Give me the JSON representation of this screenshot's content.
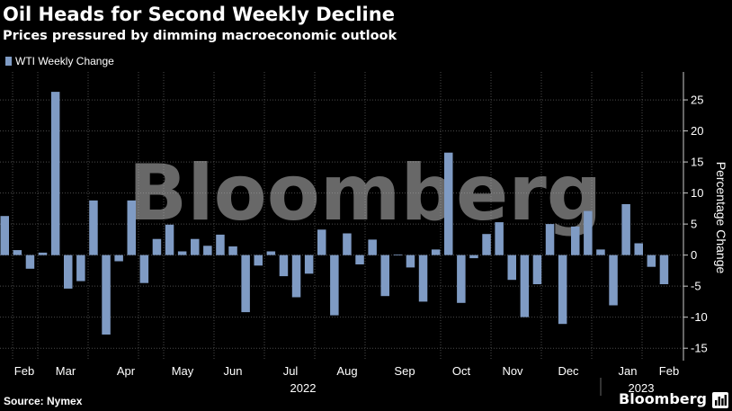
{
  "header": {
    "title": "Oil Heads for Second Weekly Decline",
    "subtitle": "Prices pressured by dimming macroeconomic outlook"
  },
  "footer": {
    "source": "Source: Nymex",
    "brand": "Bloomberg"
  },
  "watermark": "Bloomberg",
  "colors": {
    "background": "#000000",
    "bar": "#7f9bc4",
    "grid": "#4a4a4a",
    "text": "#ffffff"
  },
  "chart_data": {
    "type": "bar",
    "title": "Oil Heads for Second Weekly Decline",
    "subtitle": "Prices pressured by dimming macroeconomic outlook",
    "ylabel": "Percentage Change",
    "ylim": [
      -17,
      29.5
    ],
    "yticks": [
      -15,
      -10,
      -5,
      0,
      5,
      10,
      15,
      20,
      25
    ],
    "grid": true,
    "legend_position": "top-left",
    "x_tick_labels": [
      "Feb",
      "Mar",
      "Apr",
      "May",
      "Jun",
      "Jul",
      "Aug",
      "Sep",
      "Oct",
      "Nov",
      "Dec",
      "Jan",
      "Feb"
    ],
    "year_labels": [
      "2022",
      "2023"
    ],
    "series": [
      {
        "name": "WTI Weekly Change",
        "values": [
          6.3,
          0.8,
          -2.2,
          0.4,
          26.3,
          -5.4,
          -4.2,
          8.8,
          -12.8,
          -1.0,
          8.8,
          -4.5,
          2.6,
          4.9,
          0.6,
          2.6,
          1.5,
          3.3,
          1.4,
          -9.2,
          -1.7,
          0.6,
          -3.4,
          -6.8,
          -3.0,
          4.1,
          -9.7,
          3.5,
          -1.5,
          2.5,
          -6.6,
          0.1,
          -2.0,
          -7.5,
          0.9,
          16.5,
          -7.7,
          -0.5,
          3.4,
          5.3,
          -4.0,
          -10.0,
          -4.7,
          5.0,
          -11.1,
          4.6,
          7.1,
          0.9,
          -8.1,
          8.2,
          1.9,
          -1.9,
          -4.7
        ]
      }
    ]
  }
}
